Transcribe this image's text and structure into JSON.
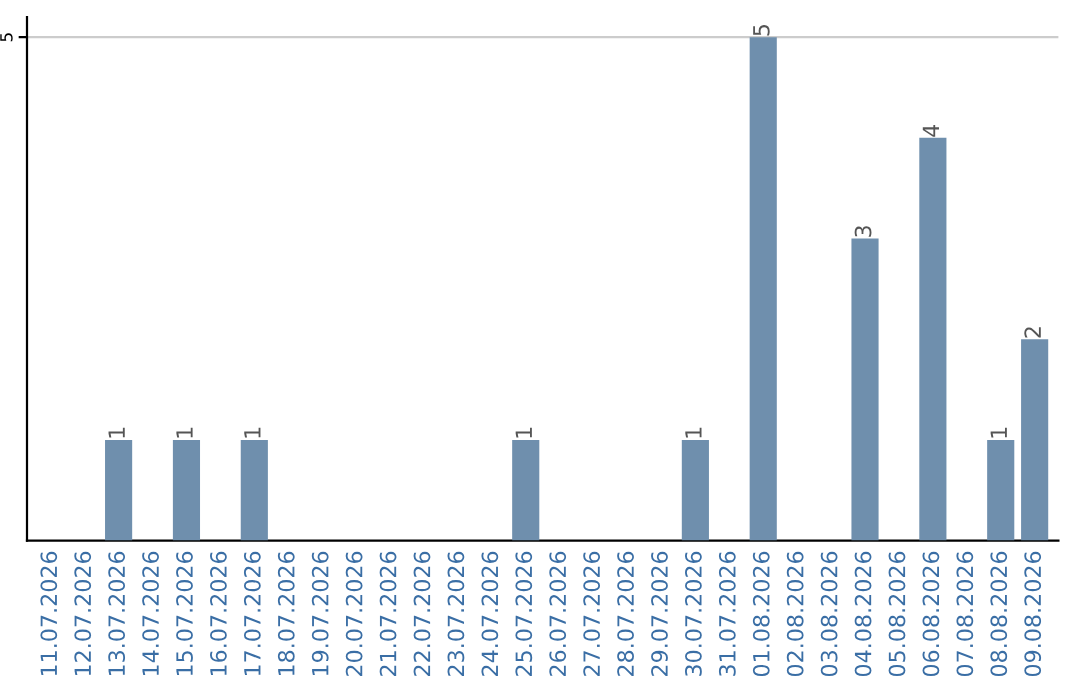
{
  "chart_data": {
    "type": "bar",
    "categories": [
      "11.07.2026",
      "12.07.2026",
      "13.07.2026",
      "14.07.2026",
      "15.07.2026",
      "16.07.2026",
      "17.07.2026",
      "18.07.2026",
      "19.07.2026",
      "20.07.2026",
      "21.07.2026",
      "22.07.2026",
      "23.07.2026",
      "24.07.2026",
      "25.07.2026",
      "26.07.2026",
      "27.07.2026",
      "28.07.2026",
      "29.07.2026",
      "30.07.2026",
      "31.07.2026",
      "01.08.2026",
      "02.08.2026",
      "03.08.2026",
      "04.08.2026",
      "05.08.2026",
      "06.08.2026",
      "07.08.2026",
      "08.08.2026",
      "09.08.2026"
    ],
    "values": [
      0,
      0,
      1,
      0,
      1,
      0,
      1,
      0,
      0,
      0,
      0,
      0,
      0,
      0,
      1,
      0,
      0,
      0,
      0,
      1,
      0,
      5,
      0,
      0,
      3,
      0,
      4,
      0,
      1,
      2
    ],
    "value_labels": [
      null,
      null,
      "1",
      null,
      "1",
      null,
      "1",
      null,
      null,
      null,
      null,
      null,
      null,
      null,
      "1",
      null,
      null,
      null,
      null,
      "1",
      null,
      "5",
      null,
      null,
      "3",
      null,
      "4",
      null,
      "1",
      "2"
    ],
    "color": "#6f8fad",
    "ylim": [
      0,
      5.2
    ],
    "yticks": [
      5
    ],
    "grid": "y"
  }
}
